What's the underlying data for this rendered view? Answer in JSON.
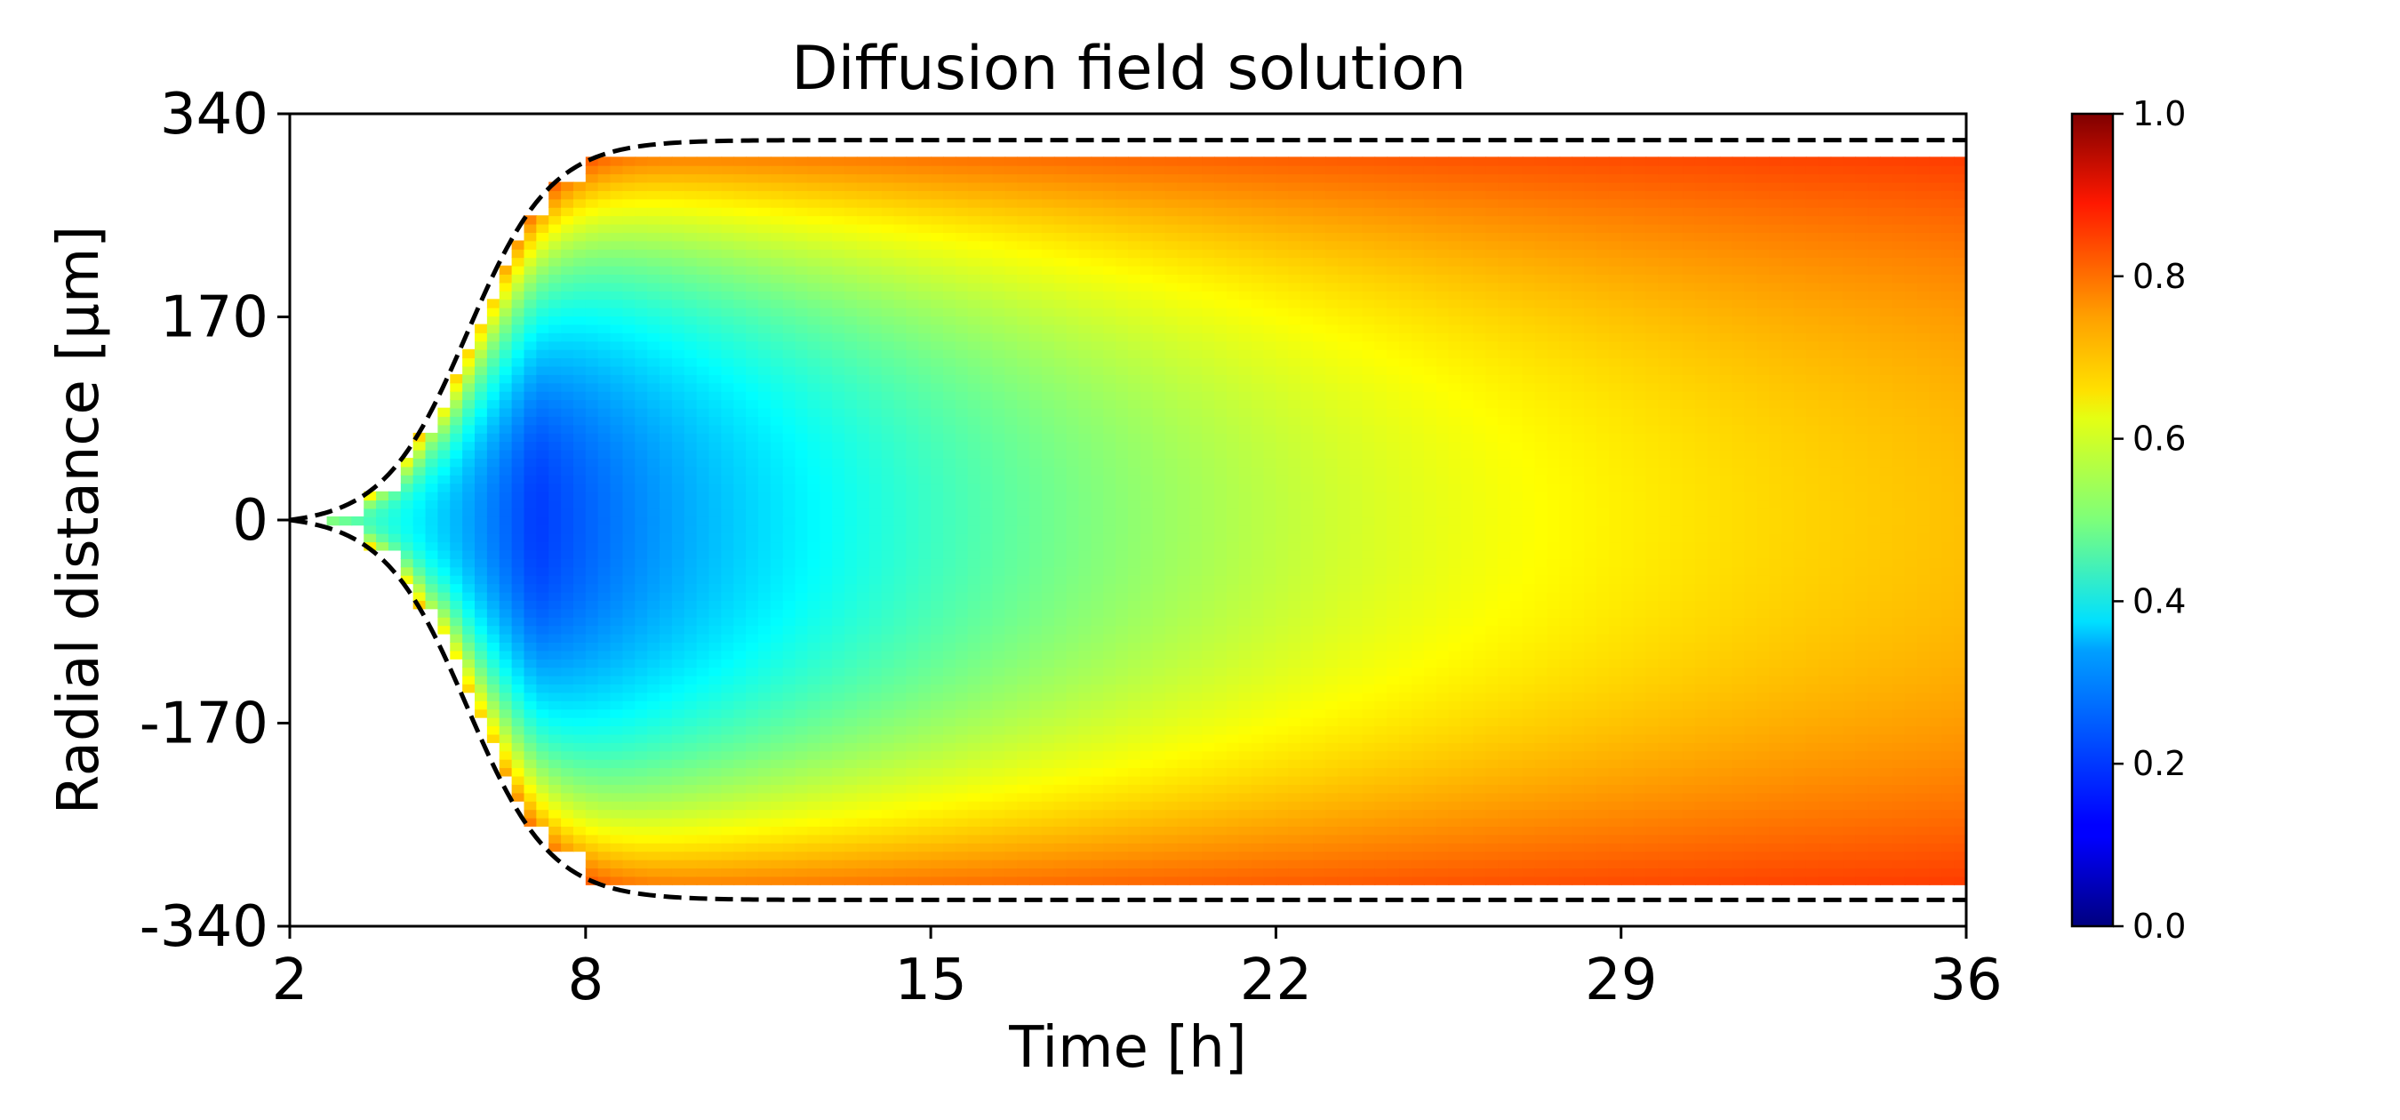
{
  "chart_data": {
    "type": "heatmap",
    "title": "Diffusion field solution",
    "xlabel": "Time [h]",
    "ylabel": "Radial distance [μm]",
    "xlim": [
      2,
      36
    ],
    "ylim": [
      -340,
      340
    ],
    "x_ticks": [
      2,
      8,
      15,
      22,
      29,
      36
    ],
    "x_tick_labels": [
      "2",
      "8",
      "15",
      "22",
      "29",
      "36"
    ],
    "y_ticks": [
      340,
      170,
      0,
      -170,
      -340
    ],
    "y_tick_labels": [
      "340",
      "170",
      "0",
      "-170",
      "-340"
    ],
    "colorbar": {
      "colormap": "jet",
      "range": [
        0.0,
        1.0
      ],
      "ticks": [
        1.0,
        0.8,
        0.6,
        0.4,
        0.2,
        0.0
      ],
      "tick_labels": [
        "1.0",
        "0.8",
        "0.6",
        "0.4",
        "0.2",
        "0.0"
      ]
    },
    "field": {
      "min_value": 0.18,
      "min_location": {
        "time": 7,
        "radius": 0
      },
      "domain_center": 0,
      "boundary_value": 0.78,
      "late_time_value": 0.83,
      "sample_profiles": [
        {
          "time": 7,
          "radius": 0,
          "value": 0.18
        },
        {
          "time": 15,
          "radius": 0,
          "value": 0.42
        },
        {
          "time": 22,
          "radius": 0,
          "value": 0.55
        },
        {
          "time": 29,
          "radius": 0,
          "value": 0.66
        },
        {
          "time": 36,
          "radius": 0,
          "value": 0.72
        },
        {
          "time": 36,
          "radius": 300,
          "value": 0.83
        }
      ]
    },
    "boundary_curves": {
      "style": "dashed",
      "color": "#000000",
      "upper_radius_max": 318,
      "lower_radius_max": -318,
      "start_time": 2,
      "saturation_time": 10
    }
  }
}
